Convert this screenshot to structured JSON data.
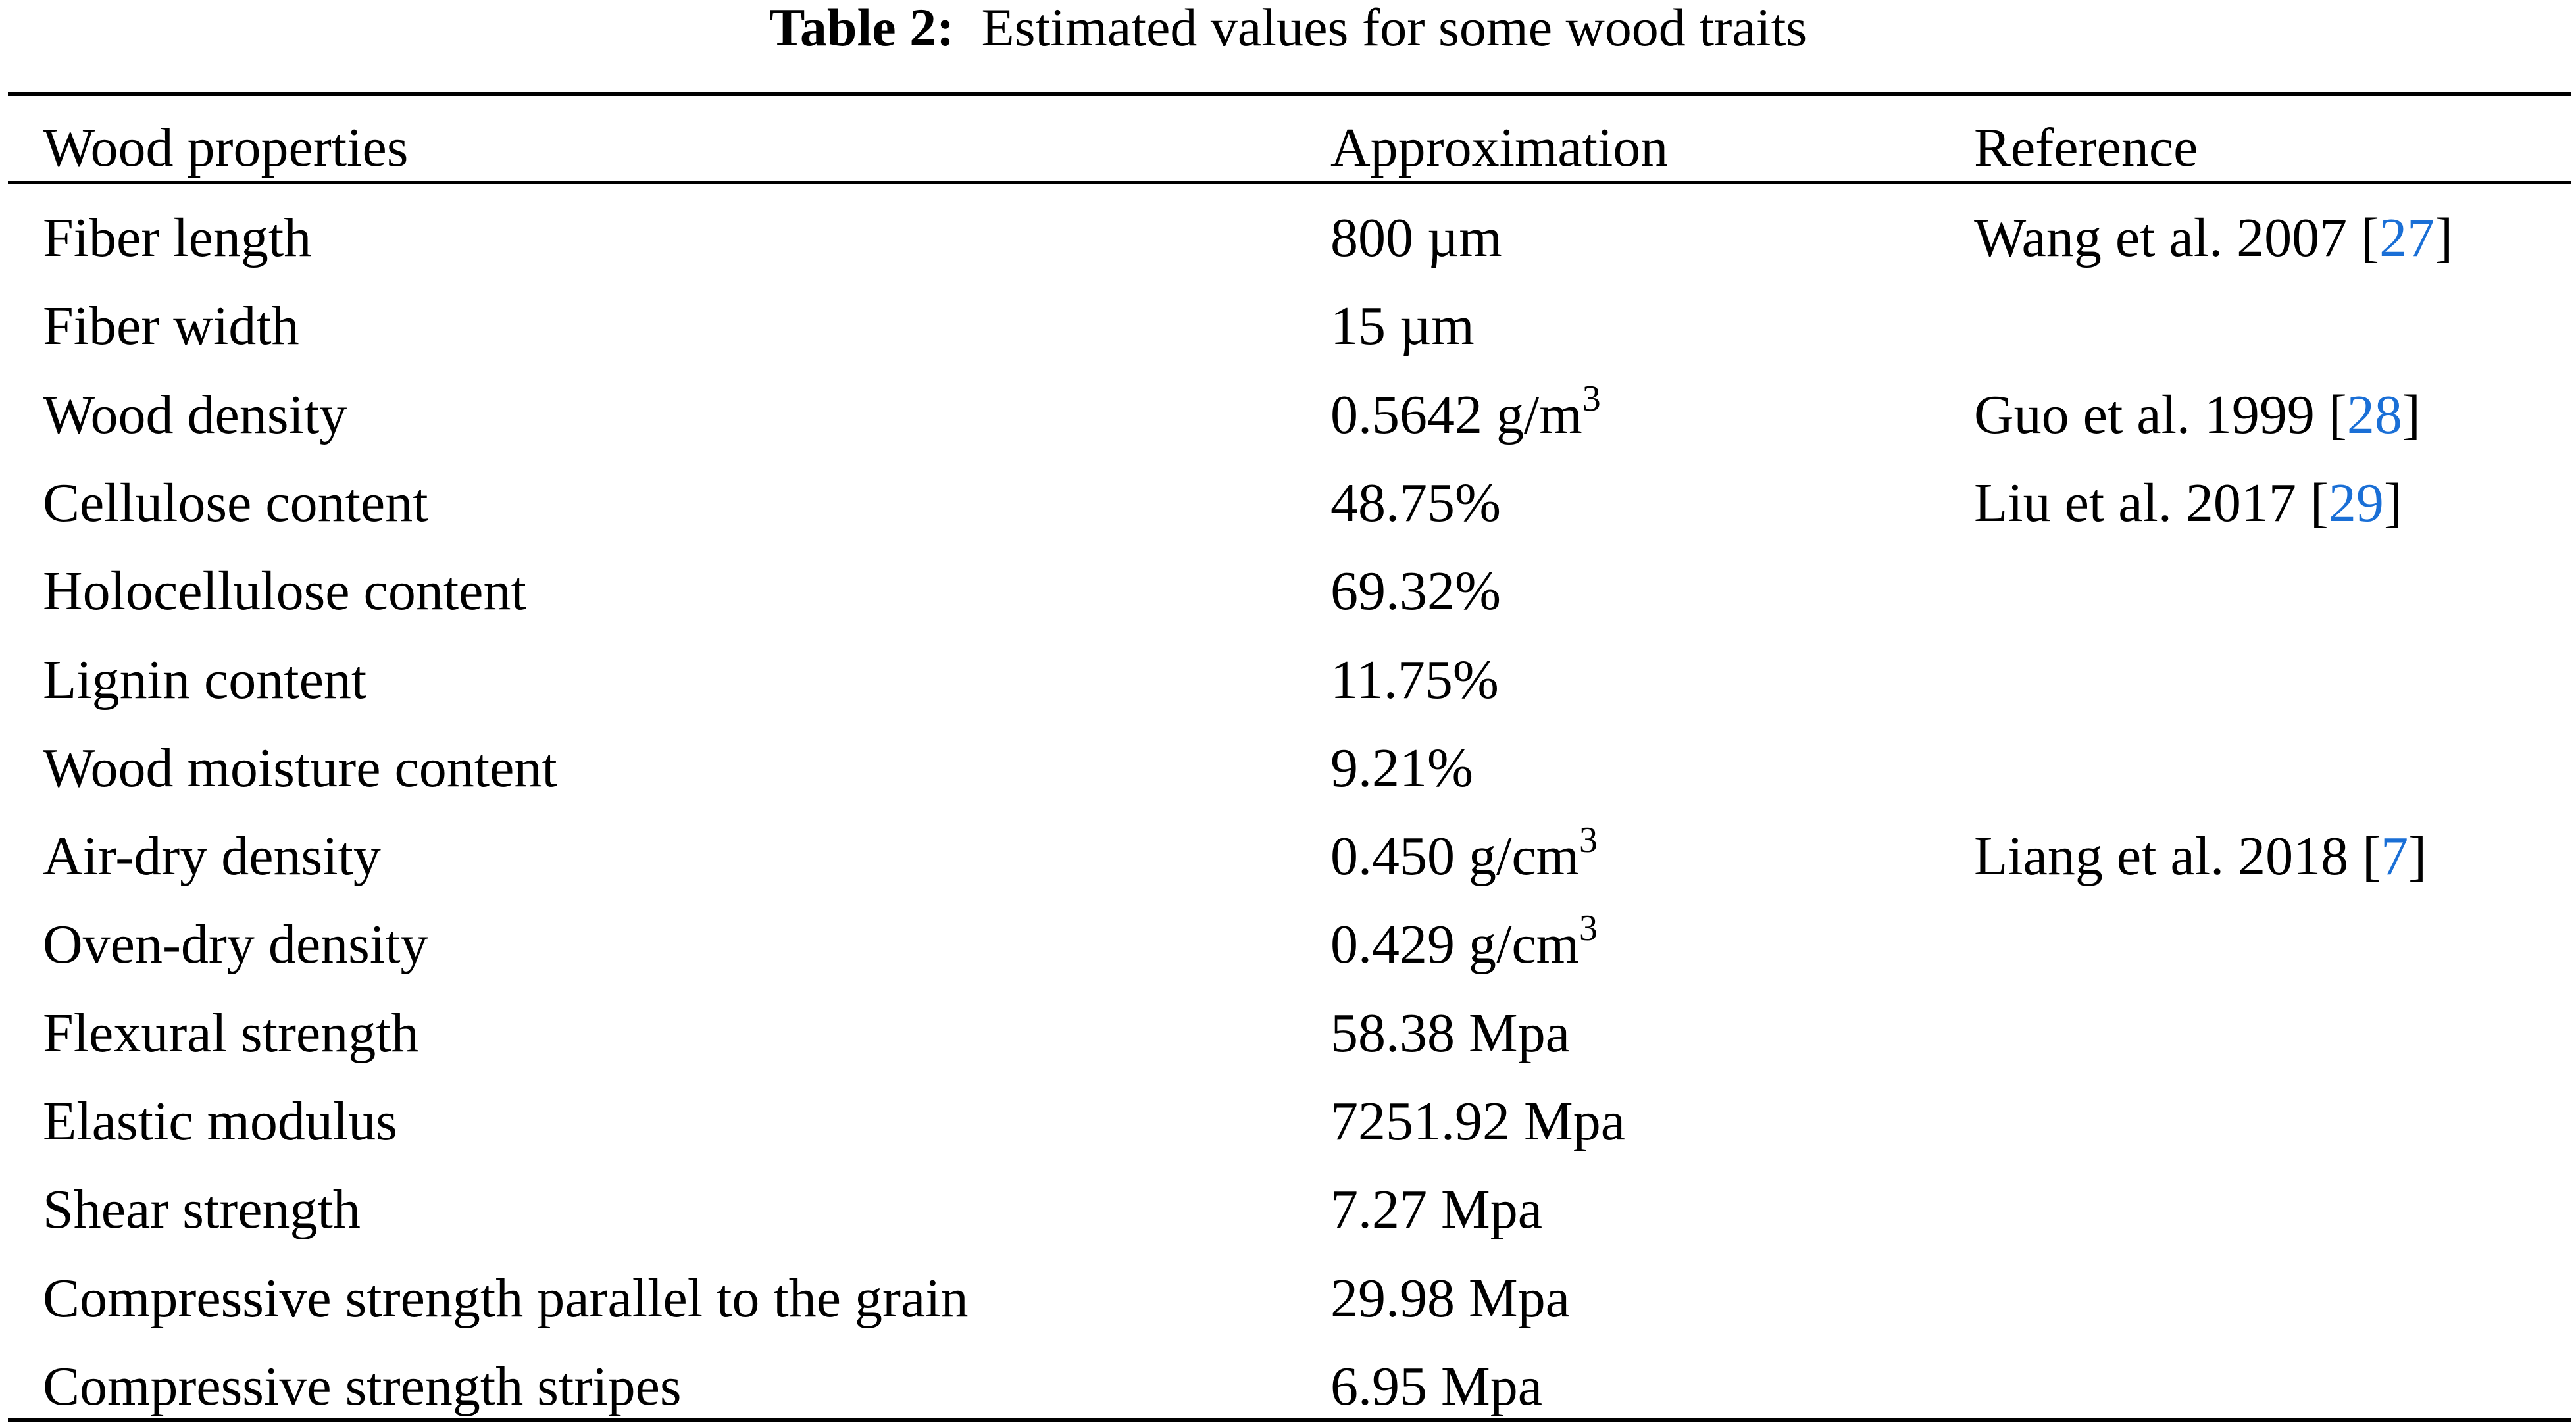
{
  "caption": {
    "label": "Table 2:",
    "text": "Estimated values for some wood traits"
  },
  "headers": [
    "Wood properties",
    "Approximation",
    "Reference"
  ],
  "rows": [
    {
      "property": "Fiber length",
      "value": "800 µm",
      "sup": "",
      "ref_text": "Wang et al. 2007 [",
      "ref_num": "27",
      "ref_close": "]"
    },
    {
      "property": "Fiber width",
      "value": "15 µm",
      "sup": "",
      "ref_text": "",
      "ref_num": "",
      "ref_close": ""
    },
    {
      "property": "Wood density",
      "value": "0.5642 g/m",
      "sup": "3",
      "ref_text": "Guo et al. 1999 [",
      "ref_num": "28",
      "ref_close": "]"
    },
    {
      "property": "Cellulose content",
      "value": "48.75%",
      "sup": "",
      "ref_text": "Liu et al. 2017 [",
      "ref_num": "29",
      "ref_close": "]"
    },
    {
      "property": "Holocellulose content",
      "value": "69.32%",
      "sup": "",
      "ref_text": "",
      "ref_num": "",
      "ref_close": ""
    },
    {
      "property": "Lignin content",
      "value": "11.75%",
      "sup": "",
      "ref_text": "",
      "ref_num": "",
      "ref_close": ""
    },
    {
      "property": "Wood moisture content",
      "value": "9.21%",
      "sup": "",
      "ref_text": "",
      "ref_num": "",
      "ref_close": ""
    },
    {
      "property": "Air-dry density",
      "value": "0.450 g/cm",
      "sup": "3",
      "ref_text": "Liang et al. 2018 [",
      "ref_num": "7",
      "ref_close": "]"
    },
    {
      "property": "Oven-dry density",
      "value": "0.429 g/cm",
      "sup": "3",
      "ref_text": "",
      "ref_num": "",
      "ref_close": ""
    },
    {
      "property": "Flexural strength",
      "value": "58.38 Mpa",
      "sup": "",
      "ref_text": "",
      "ref_num": "",
      "ref_close": ""
    },
    {
      "property": "Elastic modulus",
      "value": "7251.92 Mpa",
      "sup": "",
      "ref_text": "",
      "ref_num": "",
      "ref_close": ""
    },
    {
      "property": "Shear strength",
      "value": "7.27 Mpa",
      "sup": "",
      "ref_text": "",
      "ref_num": "",
      "ref_close": ""
    },
    {
      "property": "Compressive strength parallel to the grain",
      "value": "29.98 Mpa",
      "sup": "",
      "ref_text": "",
      "ref_num": "",
      "ref_close": ""
    },
    {
      "property": "Compressive strength stripes",
      "value": "6.95 Mpa",
      "sup": "",
      "ref_text": "",
      "ref_num": "",
      "ref_close": ""
    }
  ],
  "colors": {
    "link": "#1a6fd6"
  }
}
